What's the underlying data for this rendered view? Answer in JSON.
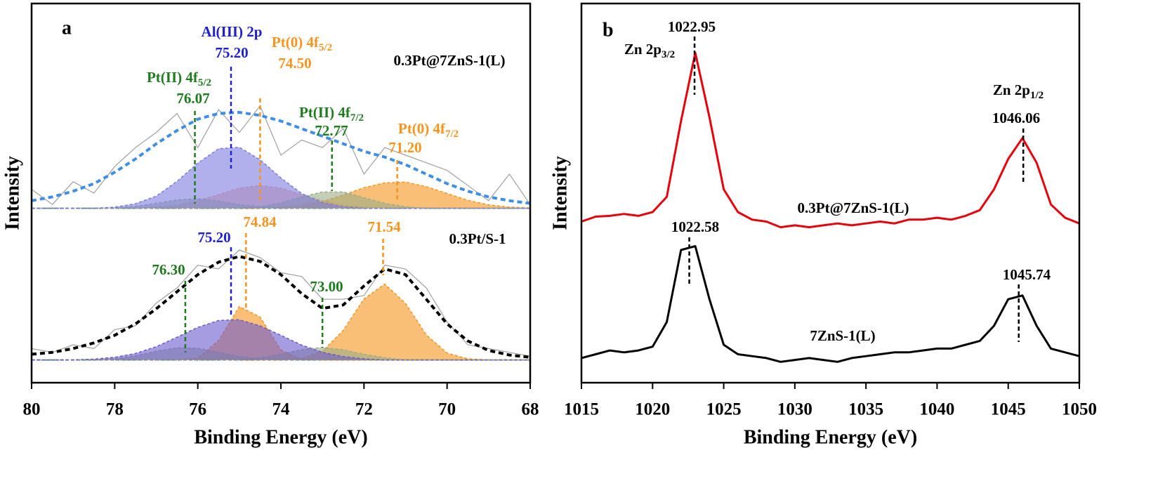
{
  "chart_data": [
    {
      "type": "line",
      "panel": "a",
      "xlabel": "Binding Energy (eV)",
      "ylabel": "Intensity",
      "xlim": [
        80,
        68
      ],
      "xticks": [
        80,
        78,
        76,
        74,
        72,
        70,
        68
      ],
      "ylim": [
        0,
        100
      ],
      "x": [
        80,
        79.5,
        79,
        78.5,
        78,
        77.5,
        77,
        76.5,
        76,
        75.5,
        75,
        74.5,
        74,
        73.5,
        73,
        72.5,
        72,
        71.5,
        71,
        70.5,
        70,
        69.5,
        69,
        68.5,
        68
      ],
      "groups": [
        {
          "label": "0.3Pt@7ZnS-1(L)",
          "baseline": 46,
          "series": [
            {
              "style": "raw",
              "color": "#a0a0a0",
              "values": [
                51,
                47,
                53,
                50,
                57,
                62,
                66,
                71,
                62,
                72,
                66,
                73,
                60,
                64,
                62,
                67,
                55,
                62,
                60,
                58,
                56,
                52,
                48,
                55,
                47
              ]
            },
            {
              "style": "peak",
              "color": "#f4a58a",
              "values": [
                46,
                46,
                46,
                46,
                46,
                46,
                46.3,
                46.8,
                48.0,
                49.6,
                51.3,
                52,
                51.3,
                49.6,
                48.0,
                46.8,
                46.3,
                46,
                46,
                46,
                46,
                46,
                46,
                46,
                46
              ]
            },
            {
              "style": "peak",
              "color": "#f7941d",
              "values": [
                46,
                46,
                46,
                46,
                46,
                46,
                46,
                46,
                46,
                46,
                46,
                46,
                46.3,
                46.8,
                47.8,
                49.5,
                51.4,
                52.7,
                52.9,
                51.7,
                49.9,
                48.1,
                46.9,
                46.3,
                46.1
              ]
            },
            {
              "style": "peak",
              "color": "#9aae88",
              "values": [
                46,
                46,
                46,
                46,
                46.1,
                46.5,
                47.3,
                48.2,
                48.5,
                47.9,
                47.0,
                46.4,
                46,
                46,
                46,
                46,
                46,
                46,
                46,
                46,
                46,
                46,
                46,
                46,
                46
              ]
            },
            {
              "style": "peak",
              "color": "#9aae88",
              "values": [
                46,
                46,
                46,
                46,
                46,
                46,
                46,
                46,
                46,
                46,
                46,
                46.4,
                47.4,
                49.0,
                50.3,
                50.3,
                48.8,
                47.3,
                46.4,
                46,
                46,
                46,
                46,
                46,
                46
              ]
            },
            {
              "style": "peak",
              "color": "#7b7be0",
              "values": [
                46,
                46,
                46,
                46,
                46.3,
                47.2,
                49.2,
                53.1,
                57.9,
                61.7,
                62.1,
                58.8,
                54.0,
                49.9,
                47.5,
                46.4,
                46,
                46,
                46,
                46,
                46,
                46,
                46,
                46,
                46
              ]
            },
            {
              "style": "envelope",
              "color": "#3d8fe6",
              "values": [
                48,
                49,
                50.5,
                52.5,
                55.5,
                59,
                63,
                66.5,
                69.5,
                71,
                71.3,
                70.5,
                69,
                67,
                65,
                63,
                61,
                59.5,
                57.5,
                55,
                52.5,
                50.5,
                49,
                48,
                47.3
              ]
            }
          ]
        },
        {
          "label": "0.3Pt/S-1",
          "baseline": 6,
          "series": [
            {
              "style": "raw",
              "color": "#a0a0a0",
              "values": [
                9,
                8,
                10,
                9,
                14,
                15,
                21,
                25,
                31,
                30,
                35,
                33,
                29,
                28,
                22,
                22,
                23,
                31,
                30,
                25,
                16,
                10,
                9,
                8,
                7
              ]
            },
            {
              "style": "peak",
              "color": "#f7941d",
              "values": [
                6,
                6,
                6,
                6,
                6,
                6,
                6,
                6,
                6.5,
                11.1,
                20.1,
                17.3,
                8.6,
                6.2,
                6,
                6,
                6,
                6,
                6,
                6,
                6,
                6,
                6,
                6,
                6
              ]
            },
            {
              "style": "peak",
              "color": "#f7941d",
              "values": [
                6,
                6,
                6,
                6,
                6,
                6,
                6,
                6,
                6,
                6,
                6,
                6,
                6,
                6.4,
                8.3,
                13.8,
                22.1,
                26.0,
                20.9,
                12.6,
                7.8,
                6.3,
                6,
                6,
                6
              ]
            },
            {
              "style": "peak",
              "color": "#9aae88",
              "values": [
                6,
                6,
                6,
                6,
                6.3,
                7.1,
                8.3,
                9.2,
                9.1,
                8.0,
                6.9,
                6.2,
                6,
                6,
                6,
                6,
                6,
                6,
                6,
                6,
                6,
                6,
                6,
                6,
                6
              ]
            },
            {
              "style": "peak",
              "color": "#9aae88",
              "values": [
                6,
                6,
                6,
                6,
                6,
                6,
                6,
                6,
                6,
                6,
                6,
                6.6,
                7.5,
                8.7,
                9.3,
                8.7,
                7.5,
                6.6,
                6,
                6,
                6,
                6,
                6,
                6,
                6
              ]
            },
            {
              "style": "peak",
              "color": "#6a5acd",
              "values": [
                6,
                6,
                6,
                6.2,
                6.7,
                7.7,
                9.5,
                12.0,
                14.6,
                16.4,
                16.6,
                15.0,
                12.5,
                9.9,
                8.0,
                6.9,
                6.3,
                6,
                6,
                6,
                6,
                6,
                6,
                6,
                6
              ]
            },
            {
              "style": "envelope",
              "color": "#000000",
              "values": [
                7.5,
                8,
                9,
                10.5,
                12.5,
                15.5,
                19.5,
                24,
                28.5,
                31.8,
                33.3,
                32,
                28.5,
                23.5,
                19.6,
                20.5,
                25.5,
                30,
                28.5,
                22,
                15.5,
                11,
                8.5,
                7.3,
                6.7
              ]
            }
          ]
        }
      ],
      "annotations": [
        {
          "x": 75.2,
          "label": "75.20",
          "name": "Al(III) 2p",
          "color": "#2020cc"
        },
        {
          "x": 74.5,
          "label": "74.50",
          "name": "Pt(0) 4f",
          "sub": "5/2",
          "color": "#f7941d"
        },
        {
          "x": 76.07,
          "label": "76.07",
          "name": "Pt(II) 4f",
          "sub": "5/2",
          "color": "#1e7b1e"
        },
        {
          "x": 72.77,
          "label": "72.77",
          "name": "Pt(II) 4f",
          "sub": "7/2",
          "color": "#1e7b1e"
        },
        {
          "x": 71.2,
          "label": "71.20",
          "name": "Pt(0) 4f",
          "sub": "7/2",
          "color": "#f7941d"
        },
        {
          "x": 76.3,
          "label": "76.30",
          "color": "#1e7b1e"
        },
        {
          "x": 75.2,
          "label": "75.20",
          "color": "#2020cc"
        },
        {
          "x": 74.84,
          "label": "74.84",
          "color": "#f7941d"
        },
        {
          "x": 73,
          "label": "73.00",
          "color": "#1e7b1e"
        },
        {
          "x": 71.54,
          "label": "71.54",
          "color": "#f7941d"
        }
      ]
    },
    {
      "type": "line",
      "panel": "b",
      "xlabel": "Binding Energy (eV)",
      "ylabel": "Intensity",
      "xlim": [
        1015,
        1050
      ],
      "xticks": [
        1015,
        1020,
        1025,
        1030,
        1035,
        1040,
        1045,
        1050
      ],
      "ylim": [
        0,
        100
      ],
      "x": [
        1015,
        1016,
        1017,
        1018,
        1019,
        1020,
        1021,
        1022,
        1023,
        1024,
        1025,
        1026,
        1027,
        1028,
        1029,
        1030,
        1031,
        1032,
        1033,
        1034,
        1035,
        1036,
        1037,
        1038,
        1039,
        1040,
        1041,
        1042,
        1043,
        1044,
        1045,
        1046,
        1047,
        1048,
        1049,
        1050
      ],
      "groups": [
        {
          "label": "0.3Pt@7ZnS-1(L)",
          "series": [
            {
              "style": "line",
              "color": "#e8000b",
              "values": [
                42.5,
                43.8,
                44,
                44.5,
                44,
                45,
                49,
                69,
                87,
                70,
                51,
                45,
                43,
                42.5,
                41,
                41.5,
                41,
                41.5,
                42,
                41.5,
                42,
                42.5,
                42,
                43,
                43,
                43.5,
                43,
                44,
                45.5,
                51,
                59,
                64.5,
                58,
                47,
                43.5,
                42
              ]
            }
          ]
        },
        {
          "label": "7ZnS-1(L)",
          "series": [
            {
              "style": "line",
              "color": "#000000",
              "values": [
                6.5,
                7.5,
                8.5,
                8,
                8.5,
                9.5,
                16,
                35,
                36,
                22,
                10,
                7.5,
                7,
                6.5,
                5.5,
                6,
                6.5,
                6,
                5.5,
                6.5,
                7,
                7.5,
                8,
                8,
                8.5,
                9,
                9,
                10,
                11,
                15,
                22,
                23,
                15,
                9,
                8,
                7
              ]
            }
          ]
        }
      ],
      "annotations": [
        {
          "x": 1022.95,
          "label": "1022.95",
          "name": "Zn 2p",
          "sub": "3/2",
          "color": "#000000"
        },
        {
          "x": 1046.06,
          "label": "1046.06",
          "name": "Zn 2p",
          "sub": "1/2",
          "color": "#000000"
        },
        {
          "x": 1022.58,
          "label": "1022.58",
          "color": "#000000"
        },
        {
          "x": 1045.74,
          "label": "1045.74",
          "color": "#000000"
        }
      ]
    }
  ]
}
